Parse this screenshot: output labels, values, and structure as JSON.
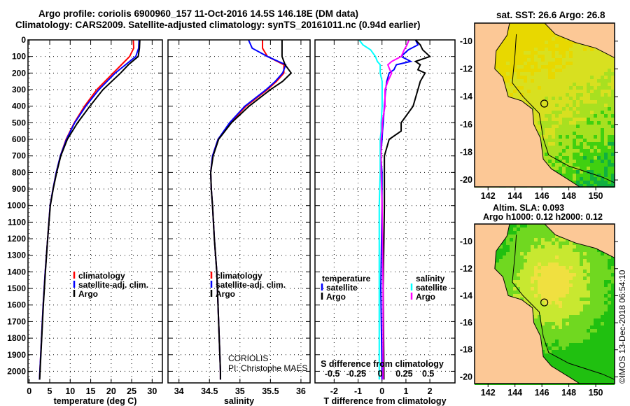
{
  "title_line1": "Argo profile: coriolis 6900960_157 11-Oct-2016 14.5S 146.18E (DM data)",
  "title_line2": "Climatology: CARS2009. Satellite-adjusted climatology: synTS_20161011.nc (0.94d earlier)",
  "credit_line1": "CORIOLIS",
  "credit_line2": "PI: Christophe MAES",
  "footer_vertical": "©IMOS 13-Dec-2018 06:54:10",
  "colors": {
    "climatology": "#ff0000",
    "satellite": "#0000ff",
    "argo": "#000000",
    "sal_satellite": "#00ffff",
    "sal_argo": "#ff00ff"
  },
  "chart_data": [
    {
      "type": "line",
      "panel": "temperature",
      "xlabel": "temperature (deg C)",
      "ylabel": "depth",
      "xlim": [
        -0.3,
        32.5
      ],
      "ylim": [
        2070,
        0
      ],
      "xticks": [
        0,
        5,
        10,
        15,
        20,
        25,
        30
      ],
      "yticks": [
        0,
        100,
        200,
        300,
        400,
        500,
        600,
        700,
        800,
        900,
        1000,
        1100,
        1200,
        1300,
        1400,
        1500,
        1600,
        1700,
        1800,
        1900,
        2000
      ],
      "grid": "dotted",
      "legend": {
        "position": "bottom-right",
        "entries": [
          "climatology",
          "satellite-adj. clim.",
          "Argo"
        ]
      },
      "depth": [
        0,
        50,
        100,
        150,
        200,
        300,
        400,
        500,
        600,
        700,
        800,
        900,
        1000,
        1200,
        1400,
        1600,
        1800,
        2000,
        2050
      ],
      "series": [
        {
          "name": "climatology",
          "values": [
            25.4,
            25.5,
            24.5,
            22.5,
            20.5,
            16.5,
            13.5,
            11,
            9,
            7.6,
            6.6,
            5.8,
            5.1,
            4.5,
            3.9,
            3.4,
            3.0,
            2.6,
            2.5
          ]
        },
        {
          "name": "satellite-adj. clim.",
          "values": [
            26.8,
            26.7,
            26,
            23.5,
            21,
            17,
            13.8,
            11.1,
            9.1,
            7.6,
            6.6,
            5.8,
            5.1,
            4.5,
            3.9,
            3.4,
            3.0,
            2.6,
            2.5
          ]
        },
        {
          "name": "Argo",
          "values": [
            27.0,
            26.9,
            26.6,
            24.2,
            22.3,
            18,
            14.8,
            11.8,
            9.3,
            7.7,
            6.7,
            5.85,
            5.15,
            4.5,
            3.95,
            3.45,
            3.05,
            2.65,
            2.55
          ]
        }
      ]
    },
    {
      "type": "line",
      "panel": "salinity",
      "xlabel": "salinity",
      "xlim": [
        33.82,
        36.15
      ],
      "ylim": [
        2070,
        0
      ],
      "xticks": [
        34,
        34.5,
        35,
        35.5,
        36
      ],
      "xticklabels": [
        "34",
        "34.5",
        "35",
        "35.5",
        "36"
      ],
      "legend": {
        "position": "bottom-right",
        "entries": [
          "climatology",
          "satellite-adj. clim.",
          "Argo"
        ]
      },
      "depth": [
        0,
        50,
        100,
        150,
        200,
        250,
        300,
        400,
        500,
        600,
        700,
        800,
        900,
        1000,
        1200,
        1400,
        1600,
        1800,
        2000,
        2050
      ],
      "series": [
        {
          "name": "climatology",
          "values": [
            35.37,
            35.37,
            35.45,
            35.72,
            35.72,
            35.6,
            35.45,
            35.1,
            34.84,
            34.64,
            34.55,
            34.52,
            34.53,
            34.55,
            34.58,
            34.62,
            34.64,
            34.66,
            34.68,
            34.68
          ]
        },
        {
          "name": "satellite-adj. clim.",
          "values": [
            35.14,
            35.2,
            35.45,
            35.75,
            35.7,
            35.58,
            35.43,
            35.08,
            34.83,
            34.64,
            34.55,
            34.52,
            34.53,
            34.55,
            34.58,
            34.62,
            34.64,
            34.66,
            34.68,
            34.68
          ]
        },
        {
          "name": "Argo",
          "values": [
            35.69,
            35.69,
            35.69,
            35.74,
            35.84,
            35.7,
            35.5,
            35.15,
            34.86,
            34.65,
            34.56,
            34.52,
            34.53,
            34.55,
            34.58,
            34.62,
            34.64,
            34.66,
            34.68,
            34.68
          ]
        }
      ]
    },
    {
      "type": "line",
      "panel": "difference",
      "xlabel": "T difference from climatology",
      "x2label": "S difference from climatology",
      "xlim": [
        -2.8,
        3.05
      ],
      "x2lim": [
        -0.68,
        0.78
      ],
      "ylim": [
        2070,
        0
      ],
      "xticks": [
        -2,
        -1,
        0,
        1,
        2
      ],
      "x2ticks": [
        -0.5,
        -0.25,
        0,
        0.25,
        0.5
      ],
      "x2ticklabels": [
        "-0.5",
        "-0.25",
        "0",
        "0.25",
        "0.5"
      ],
      "legend": {
        "temperature_title": "temperature",
        "salinity_title": "salinity",
        "entries": [
          "satellite",
          "Argo",
          "satellite",
          "Argo"
        ]
      },
      "depth": [
        0,
        30,
        60,
        100,
        130,
        150,
        180,
        200,
        250,
        300,
        400,
        500,
        550,
        600,
        700,
        800,
        1000,
        1500,
        2000,
        2050
      ],
      "series": [
        {
          "name": "T satellite",
          "values": [
            1.4,
            1.5,
            1.1,
            0.8,
            1.2,
            0.6,
            0.5,
            0.3,
            0.2,
            0.15,
            0.1,
            0.05,
            0.02,
            0,
            -0.05,
            0,
            0,
            -0.05,
            0,
            0
          ]
        },
        {
          "name": "T Argo",
          "values": [
            1.4,
            1.6,
            1.7,
            2.0,
            1.4,
            1.6,
            1.5,
            1.8,
            1.6,
            1.5,
            1.3,
            0.8,
            0.8,
            0.3,
            0.1,
            0.1,
            0.1,
            0.05,
            0.08,
            0.08
          ]
        },
        {
          "name": "S satellite",
          "values": [
            -0.22,
            -0.18,
            -0.1,
            -0.05,
            -0.03,
            0,
            0,
            0,
            0.02,
            0.02,
            0.02,
            0.01,
            0.01,
            0,
            0,
            0,
            -0.01,
            -0.01,
            -0.01,
            -0.01
          ]
        },
        {
          "name": "S Argo",
          "values": [
            0.3,
            0.28,
            0.25,
            0.22,
            0.12,
            0.08,
            0.1,
            0.12,
            0.08,
            0.05,
            0.05,
            0.02,
            0.02,
            0.01,
            0.01,
            0.01,
            0.02,
            0.03,
            0.03,
            0.03
          ]
        }
      ]
    },
    {
      "type": "heatmap",
      "panel": "sst-map",
      "title": "sat. SST: 26.6 Argo: 26.8",
      "xlim": [
        141,
        151.4
      ],
      "ylim": [
        -20.5,
        -8.7
      ],
      "xticks": [
        142,
        144,
        146,
        148,
        150
      ],
      "yticks": [
        -10,
        -12,
        -14,
        -16,
        -18,
        -20
      ],
      "marker": {
        "lon": 146.18,
        "lat": -14.5
      }
    },
    {
      "type": "heatmap",
      "panel": "sla-map",
      "title_line1": "Altim. SLA: 0.093",
      "title_line2": "Argo h1000: 0.12 h2000: 0.12",
      "xlim": [
        141,
        151.4
      ],
      "ylim": [
        -20.5,
        -8.7
      ],
      "xticks": [
        142,
        144,
        146,
        148,
        150
      ],
      "yticks": [
        -10,
        -12,
        -14,
        -16,
        -18,
        -20
      ],
      "marker": {
        "lon": 146.18,
        "lat": -14.5
      }
    }
  ]
}
